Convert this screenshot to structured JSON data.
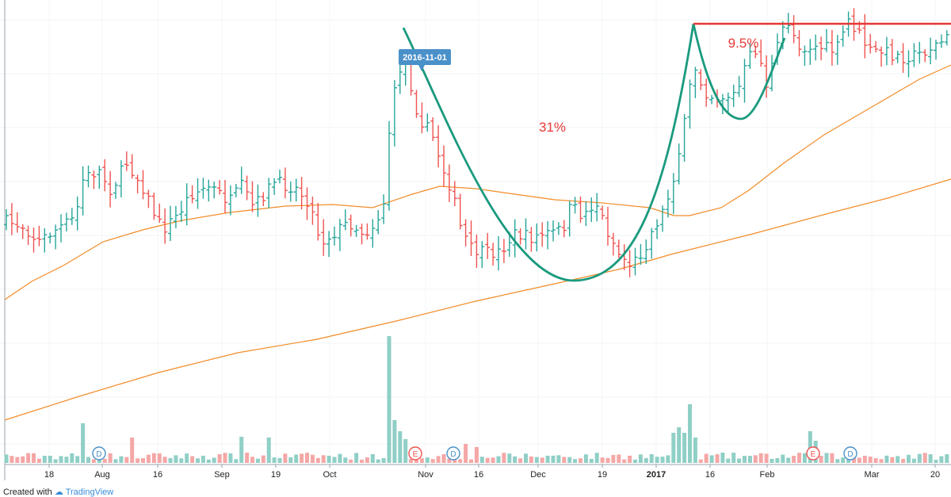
{
  "footer": {
    "created_with": "Created with",
    "brand": "TradingView"
  },
  "chart_data": {
    "type": "ohlc",
    "x_axis_labels": [
      "18",
      "Aug",
      "16",
      "Sep",
      "19",
      "Oct",
      "Nov",
      "16",
      "Dec",
      "19",
      "2017",
      "16",
      "Feb",
      "Mar",
      "20"
    ],
    "price_start": 100,
    "annotations": {
      "date_tag": "2016-11-01",
      "cup_gain": "31%",
      "handle_gain": "9.5%"
    },
    "event_markers": [
      "D",
      "E",
      "D",
      "E",
      "D"
    ],
    "colors": {
      "up": "#26a69a",
      "down": "#ef5350",
      "up_volume": "#8fcfc6",
      "down_volume": "#f4a7a6",
      "moving_average": "#f28c28",
      "cup_outline": "#1a9a7e",
      "resistance": "#e53935",
      "label_text": "#e53935",
      "tag_bg": "#4a90c9"
    }
  }
}
